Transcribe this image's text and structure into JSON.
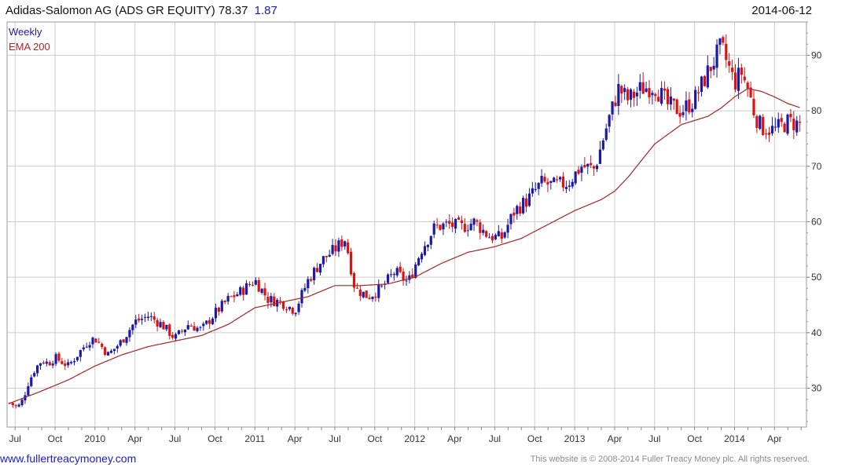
{
  "header": {
    "title": "Adidas-Salomon AG (ADS GR EQUITY)",
    "last_price": "78.37",
    "change": "1.87",
    "date": "2014-06-12"
  },
  "footer": {
    "website": "www.fullertreacymoney.com",
    "copyright": "This website is © 2008-2014 Fuller Treacy Money plc. All rights reserved."
  },
  "colors": {
    "up_bar": "#1a1aa6",
    "down_bar": "#dd1111",
    "ema": "#aa2222",
    "grid": "#cccccc"
  },
  "chart_data": {
    "type": "candlestick",
    "title": "Adidas-Salomon AG (ADS GR EQUITY)",
    "frequency": "Weekly",
    "legend": [
      "Weekly",
      "EMA 200"
    ],
    "ylim": [
      23,
      96
    ],
    "y_ticks": [
      30,
      40,
      50,
      60,
      70,
      80,
      90
    ],
    "x_ticks": [
      "Jul",
      "Oct",
      "2010",
      "Apr",
      "Jul",
      "Oct",
      "2011",
      "Apr",
      "Jul",
      "Oct",
      "2012",
      "Apr",
      "Jul",
      "Oct",
      "2013",
      "Apr",
      "Jul",
      "Oct",
      "2014",
      "Apr"
    ],
    "x_tick_months": [
      0,
      3,
      6,
      9,
      12,
      15,
      18,
      21,
      24,
      27,
      30,
      33,
      36,
      39,
      42,
      45,
      48,
      51,
      54,
      57
    ],
    "x_range_months": [
      -0.6,
      59.4
    ],
    "price_anchors_months": [
      -0.5,
      0.2,
      0.6,
      1.0,
      1.5,
      2.0,
      2.5,
      3.0,
      4.0,
      4.5,
      5.0,
      5.5,
      6.0,
      7.0,
      8.0,
      9.0,
      10.0,
      11.0,
      12.0,
      13.0,
      14.0,
      15.0,
      16.0,
      17.0,
      18.0,
      19.0,
      20.0,
      21.0,
      22.0,
      23.0,
      24.0,
      24.8,
      25.5,
      26.5,
      27.5,
      28.5,
      29.5,
      30.5,
      31.5,
      32.5,
      33.5,
      34.5,
      35.5,
      36.5,
      37.5,
      38.5,
      39.5,
      40.5,
      41.5,
      42.5,
      43.5,
      44.5,
      45.3,
      46.0,
      47.0,
      48.0,
      49.0,
      50.0,
      51.0,
      52.0,
      53.0,
      54.0,
      54.5,
      55.0,
      55.5,
      56.0,
      57.0,
      58.0,
      59.0
    ],
    "price_anchors_values": [
      27.5,
      26.5,
      28.0,
      31.0,
      33.5,
      35.0,
      34.5,
      35.5,
      34.0,
      35.5,
      37.0,
      38.5,
      39.0,
      36.0,
      38.5,
      42.0,
      43.0,
      41.5,
      39.0,
      41.5,
      40.5,
      43.5,
      46.0,
      47.5,
      49.5,
      46.0,
      45.5,
      44.0,
      49.5,
      53.0,
      55.0,
      57.0,
      48.0,
      46.5,
      48.0,
      51.0,
      49.0,
      55.0,
      59.0,
      59.5,
      59.0,
      60.0,
      57.5,
      57.0,
      62.0,
      64.0,
      67.0,
      66.5,
      67.0,
      70.0,
      69.5,
      78.0,
      84.0,
      82.0,
      84.0,
      84.5,
      81.0,
      80.0,
      82.0,
      87.0,
      91.5,
      85.0,
      87.0,
      84.0,
      79.5,
      77.0,
      76.5,
      78.0,
      77.5
    ],
    "ema_anchors_months": [
      -0.5,
      2.0,
      4.0,
      6.0,
      8.0,
      10.0,
      12.0,
      14.0,
      16.0,
      18.0,
      20.0,
      22.0,
      24.0,
      26.0,
      28.0,
      30.0,
      32.0,
      34.0,
      36.0,
      38.0,
      40.0,
      42.0,
      44.0,
      45.0,
      46.0,
      48.0,
      50.0,
      52.0,
      53.0,
      54.0,
      55.0,
      56.0,
      57.0,
      58.0,
      59.0
    ],
    "ema_anchors_values": [
      27.2,
      29.5,
      31.5,
      34.0,
      36.0,
      37.5,
      38.5,
      39.5,
      41.5,
      44.5,
      45.5,
      46.5,
      48.5,
      48.5,
      48.8,
      50.0,
      52.5,
      54.5,
      55.5,
      57.0,
      59.5,
      62.0,
      64.0,
      65.5,
      68.0,
      74.0,
      77.5,
      79.0,
      80.5,
      82.5,
      84.0,
      83.5,
      82.5,
      81.3,
      80.5
    ],
    "summary": {
      "start_price_approx": 27,
      "high_approx": 94,
      "low_approx": 25,
      "last_close": 78.37,
      "last_change": 1.87
    }
  }
}
